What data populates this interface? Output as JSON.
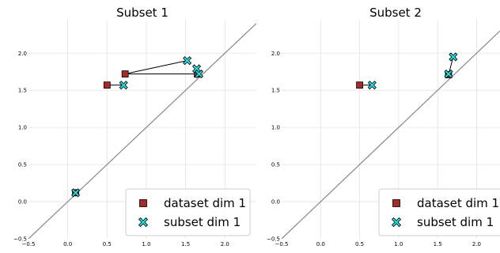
{
  "chart_data": [
    {
      "type": "scatter",
      "title": "Subset 1",
      "xlim": [
        -0.5,
        2.4
      ],
      "ylim": [
        -0.5,
        2.45
      ],
      "xticks": [
        "−0.5",
        "0.0",
        "0.5",
        "1.0",
        "1.5",
        "2.0"
      ],
      "yticks": [
        "−0.5",
        "0.0",
        "0.5",
        "1.0",
        "1.5",
        "2.0"
      ],
      "grid": true,
      "diagonal": true,
      "legend_placement": "lower-right",
      "series": [
        {
          "name": "dataset dim 1",
          "marker": "square",
          "color": "#a52a2a",
          "points": [
            [
              0.5,
              1.57
            ],
            [
              0.73,
              1.72
            ],
            [
              0.1,
              0.12
            ],
            [
              1.65,
              1.72
            ]
          ]
        },
        {
          "name": "subset dim 1",
          "marker": "x",
          "color": "#22dddd",
          "points": [
            [
              0.71,
              1.57
            ],
            [
              1.52,
              1.9
            ],
            [
              0.1,
              0.12
            ],
            [
              1.64,
              1.79
            ],
            [
              1.67,
              1.72
            ]
          ]
        }
      ],
      "links": [
        [
          [
            0.5,
            1.57
          ],
          [
            0.71,
            1.57
          ]
        ],
        [
          [
            0.73,
            1.72
          ],
          [
            1.52,
            1.9
          ]
        ],
        [
          [
            0.73,
            1.72
          ],
          [
            1.67,
            1.72
          ]
        ],
        [
          [
            1.65,
            1.72
          ],
          [
            1.64,
            1.79
          ]
        ]
      ]
    },
    {
      "type": "scatter",
      "title": "Subset 2",
      "xlim": [
        -0.5,
        2.3
      ],
      "ylim": [
        -0.5,
        2.45
      ],
      "xticks": [
        "−0.5",
        "0.0",
        "0.5",
        "1.0",
        "1.5",
        "2.0"
      ],
      "yticks": [
        "−0.5",
        "0.0",
        "0.5",
        "1.0",
        "1.5",
        "2.0"
      ],
      "grid": true,
      "diagonal": true,
      "legend_placement": "lower-right",
      "series": [
        {
          "name": "dataset dim 1",
          "marker": "square",
          "color": "#a52a2a",
          "points": [
            [
              0.5,
              1.57
            ],
            [
              1.64,
              1.71
            ]
          ]
        },
        {
          "name": "subset dim 1",
          "marker": "x",
          "color": "#22dddd",
          "points": [
            [
              0.66,
              1.57
            ],
            [
              1.7,
              1.95
            ],
            [
              1.64,
              1.72
            ]
          ]
        }
      ],
      "links": [
        [
          [
            0.5,
            1.57
          ],
          [
            0.66,
            1.57
          ]
        ],
        [
          [
            1.64,
            1.71
          ],
          [
            1.7,
            1.95
          ]
        ]
      ]
    }
  ]
}
